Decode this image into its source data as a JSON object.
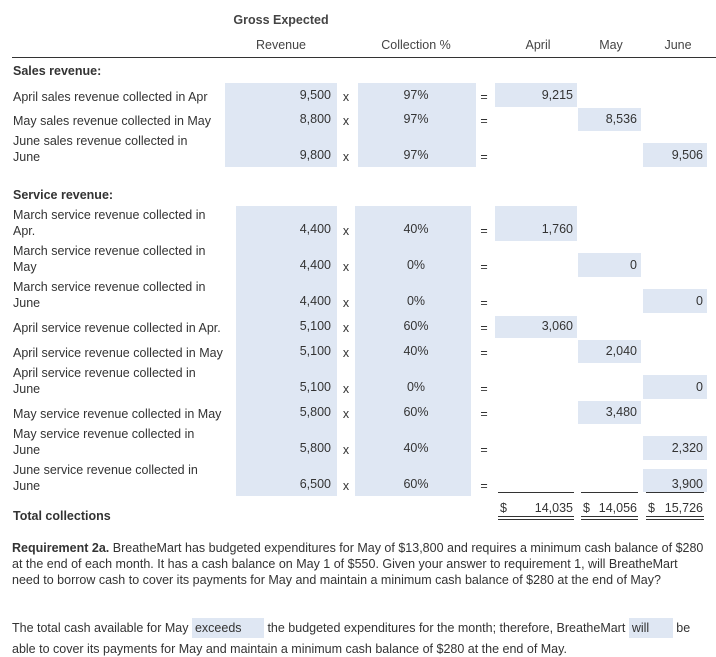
{
  "header": {
    "revenue_top": "Gross Expected",
    "revenue": "Revenue",
    "collection": "Collection %",
    "april": "April",
    "may": "May",
    "june": "June"
  },
  "symbols": {
    "times": "x",
    "equals": "="
  },
  "sales": {
    "title": "Sales revenue:",
    "rows": [
      {
        "label": [
          "April sales revenue collected in Apr"
        ],
        "revenue": "9,500",
        "pct": "97%",
        "april": "9,215"
      },
      {
        "label": [
          "May sales revenue collected in May"
        ],
        "revenue": "8,800",
        "pct": "97%",
        "may": "8,536"
      },
      {
        "label": [
          "June sales revenue collected in",
          "June"
        ],
        "revenue": "9,800",
        "pct": "97%",
        "june": "9,506"
      }
    ]
  },
  "service": {
    "title": "Service revenue:",
    "rows": [
      {
        "label": [
          "March service revenue collected in",
          "Apr."
        ],
        "revenue": "4,400",
        "pct": "40%",
        "april": "1,760"
      },
      {
        "label": [
          "March service revenue collected in",
          "May"
        ],
        "revenue": "4,400",
        "pct": "0%",
        "may": "0"
      },
      {
        "label": [
          "March service revenue collected in",
          "June"
        ],
        "revenue": "4,400",
        "pct": "0%",
        "june": "0"
      },
      {
        "label": [
          "April service revenue collected in Apr."
        ],
        "revenue": "5,100",
        "pct": "60%",
        "april": "3,060"
      },
      {
        "label": [
          "April service revenue collected in May"
        ],
        "revenue": "5,100",
        "pct": "40%",
        "may": "2,040"
      },
      {
        "label": [
          "April service revenue collected in",
          "June"
        ],
        "revenue": "5,100",
        "pct": "0%",
        "june": "0"
      },
      {
        "label": [
          "May service revenue collected in May"
        ],
        "revenue": "5,800",
        "pct": "60%",
        "may": "3,480"
      },
      {
        "label": [
          "May service revenue collected in",
          "June"
        ],
        "revenue": "5,800",
        "pct": "40%",
        "june": "2,320"
      },
      {
        "label": [
          "June service revenue collected in",
          "June"
        ],
        "revenue": "6,500",
        "pct": "60%",
        "june": "3,900"
      }
    ]
  },
  "totals": {
    "label": "Total collections",
    "currency": "$",
    "april": "14,035",
    "may": "14,056",
    "june": "15,726"
  },
  "requirement": {
    "heading": "Requirement 2a.",
    "text": "BreatheMart has budgeted expenditures for May of $13,800 and requires a minimum cash balance of $280 at the end of each month. It has a cash balance on May 1 of $550. Given your answer to requirement 1, will BreatheMart need to borrow cash to cover its payments for May and maintain a minimum cash balance of $280 at the end of May?"
  },
  "answer": {
    "part1": "The total cash available for May",
    "choice1": "exceeds",
    "part2": "the budgeted expenditures for the month; therefore, BreatheMart",
    "choice2": "will",
    "part3": "be able to cover its payments for May and maintain a minimum cash balance of $280 at the end of May."
  }
}
